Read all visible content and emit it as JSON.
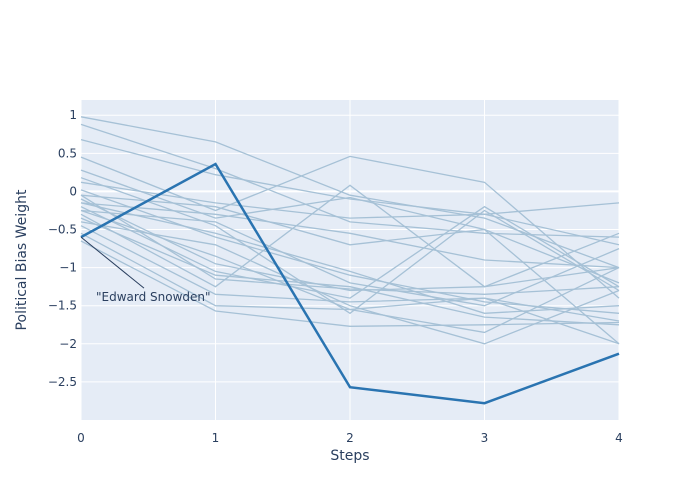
{
  "chart_data": {
    "type": "line",
    "xlabel": "Steps",
    "ylabel": "Political Bias Weight",
    "x": [
      0,
      1,
      2,
      3,
      4
    ],
    "xlim": [
      0,
      4
    ],
    "ylim": [
      -3,
      1.2
    ],
    "x_ticks": [
      "0",
      "1",
      "2",
      "3",
      "4"
    ],
    "y_ticks": [
      {
        "v": 1,
        "label": "1"
      },
      {
        "v": 0.5,
        "label": "0.5"
      },
      {
        "v": 0,
        "label": "0"
      },
      {
        "v": -0.5,
        "label": "−0.5"
      },
      {
        "v": -1,
        "label": "−1"
      },
      {
        "v": -1.5,
        "label": "−1.5"
      },
      {
        "v": -2,
        "label": "−2"
      },
      {
        "v": -2.5,
        "label": "−2.5"
      }
    ],
    "grid": true,
    "background_color": "#E5ECF6",
    "faint_color": "#a6c1d6",
    "highlight_color": "#2a74b1",
    "series": [
      {
        "values": [
          0.98,
          0.65,
          -0.05,
          -0.35,
          -1.0
        ]
      },
      {
        "values": [
          0.88,
          0.3,
          -0.4,
          -0.55,
          -0.6
        ]
      },
      {
        "values": [
          0.68,
          0.22,
          -0.1,
          -0.3,
          -0.15
        ]
      },
      {
        "values": [
          0.45,
          -0.25,
          0.46,
          0.12,
          -1.4
        ]
      },
      {
        "values": [
          0.28,
          -0.35,
          -0.08,
          -0.5,
          -1.2
        ]
      },
      {
        "values": [
          0.18,
          -0.45,
          -1.6,
          -0.25,
          -1.3
        ]
      },
      {
        "values": [
          0.12,
          -0.15,
          -0.35,
          -0.3,
          -0.7
        ]
      },
      {
        "values": [
          0.02,
          -0.6,
          -1.1,
          -1.45,
          -1.6
        ]
      },
      {
        "values": [
          -0.05,
          -0.2,
          -0.7,
          -0.5,
          -2.0
        ]
      },
      {
        "values": [
          -0.1,
          -0.95,
          -1.3,
          -1.25,
          -1.0
        ]
      },
      {
        "values": [
          -0.15,
          -0.3,
          -0.55,
          -0.9,
          -1.0
        ]
      },
      {
        "values": [
          -0.2,
          -1.05,
          -1.4,
          -0.2,
          -1.25
        ]
      },
      {
        "values": [
          -0.25,
          -0.4,
          -1.2,
          -1.5,
          -0.75
        ]
      },
      {
        "values": [
          -0.3,
          -1.25,
          0.08,
          -1.25,
          -0.55
        ]
      },
      {
        "values": [
          -0.35,
          -1.1,
          -1.25,
          -1.65,
          -1.75
        ]
      },
      {
        "values": [
          -0.4,
          -0.7,
          -1.5,
          -2.0,
          -1.3
        ]
      },
      {
        "values": [
          -0.45,
          -1.35,
          -1.45,
          -1.4,
          -1.7
        ]
      },
      {
        "values": [
          -0.55,
          -1.5,
          -1.55,
          -1.85,
          -1.0
        ]
      },
      {
        "values": [
          -0.65,
          -1.57,
          -1.77,
          -1.75,
          -1.72
        ]
      },
      {
        "values": [
          -0.25,
          -0.85,
          -1.55,
          -1.4,
          -2.0
        ]
      },
      {
        "values": [
          -0.05,
          -1.15,
          -1.28,
          -1.35,
          -1.25
        ]
      },
      {
        "values": [
          -0.15,
          -0.55,
          -1.05,
          -1.6,
          -1.5
        ]
      }
    ],
    "highlight": {
      "name": "\"Edward Snowden\"",
      "values": [
        -0.6,
        0.36,
        -2.57,
        -2.78,
        -2.13
      ]
    },
    "annotation": {
      "text": "\"Edward Snowden\"",
      "x": 0,
      "y": -0.6
    }
  }
}
